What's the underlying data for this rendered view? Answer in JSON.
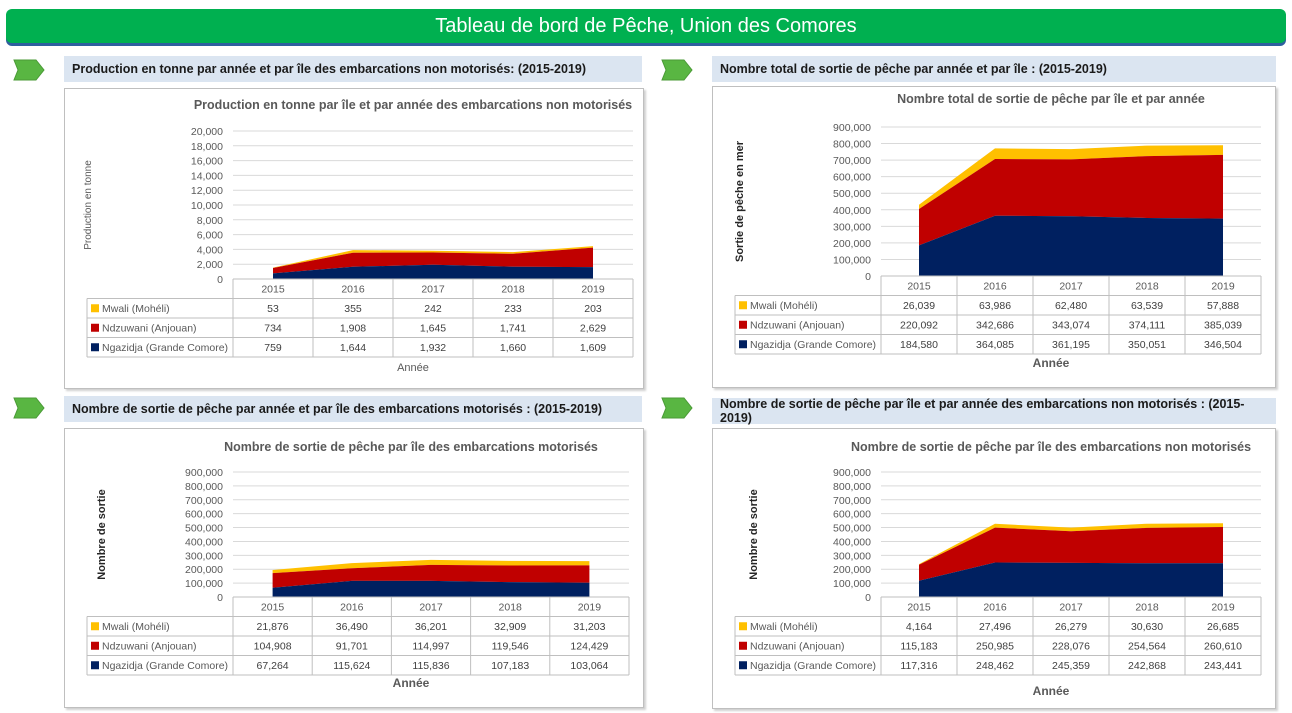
{
  "header": {
    "title": "Tableau de bord de Pêche,  Union des Comores"
  },
  "colors": {
    "mwali": "#ffc000",
    "ndzuwani": "#c00000",
    "ngazidja": "#002060",
    "grid": "#d9d9d9",
    "axis_text": "#595959",
    "header_bg": "#00b050"
  },
  "panels": [
    {
      "heading": "Production en tonne par année et par  île des embarcations non motorisés: (2015-2019)",
      "chart_data": {
        "type": "area",
        "stacked": true,
        "title": "Production en tonne par île et par année des embarcations non motorisés",
        "xlabel": "Année",
        "ylabel": "Production en tonne",
        "ylim": [
          0,
          20000
        ],
        "yticks": [
          "20,000",
          "18,000",
          "16,000",
          "14,000",
          "12,000",
          "10,000",
          "8,000",
          "6,000",
          "4,000",
          "2,000",
          "0"
        ],
        "categories": [
          "2015",
          "2016",
          "2017",
          "2018",
          "2019"
        ],
        "series": [
          {
            "name": "Mwali (Mohéli)",
            "values": [
              53,
              355,
              242,
              233,
              203
            ],
            "labels": [
              "53",
              "355",
              "242",
              "233",
              "203"
            ]
          },
          {
            "name": "Ndzuwani (Anjouan)",
            "values": [
              734,
              1908,
              1645,
              1741,
              2629
            ],
            "labels": [
              "734",
              "1,908",
              "1,645",
              "1,741",
              "2,629"
            ]
          },
          {
            "name": "Ngazidja (Grande Comore)",
            "values": [
              759,
              1644,
              1932,
              1660,
              1609
            ],
            "labels": [
              "759",
              "1,644",
              "1,932",
              "1,660",
              "1,609"
            ]
          }
        ]
      }
    },
    {
      "heading": "Nombre total de sortie de pêche par année et par île : (2015-2019)",
      "chart_data": {
        "type": "area",
        "stacked": true,
        "title": "Nombre total de sortie de pêche par île  et par année",
        "xlabel": "Année",
        "ylabel": "Sortie de pêche en mer",
        "ylim": [
          0,
          900000
        ],
        "yticks": [
          "900,000",
          "800,000",
          "700,000",
          "600,000",
          "500,000",
          "400,000",
          "300,000",
          "200,000",
          "100,000",
          "0"
        ],
        "categories": [
          "2015",
          "2016",
          "2017",
          "2018",
          "2019"
        ],
        "series": [
          {
            "name": "Mwali (Mohéli)",
            "values": [
              26039,
              63986,
              62480,
              63539,
              57888
            ],
            "labels": [
              "26,039",
              "63,986",
              "62,480",
              "63,539",
              "57,888"
            ]
          },
          {
            "name": "Ndzuwani (Anjouan)",
            "values": [
              220092,
              342686,
              343074,
              374111,
              385039
            ],
            "labels": [
              "220,092",
              "342,686",
              "343,074",
              "374,111",
              "385,039"
            ]
          },
          {
            "name": "Ngazidja (Grande Comore)",
            "values": [
              184580,
              364085,
              361195,
              350051,
              346504
            ],
            "labels": [
              "184,580",
              "364,085",
              "361,195",
              "350,051",
              "346,504"
            ]
          }
        ]
      }
    },
    {
      "heading": "Nombre de sortie de pêche par année et par île des embarcations motorisés : (2015-2019)",
      "chart_data": {
        "type": "area",
        "stacked": true,
        "title": "Nombre de sortie de pêche par île des embarcations motorisés",
        "xlabel": "Année",
        "ylabel": "Nombre de sortie",
        "ylim": [
          0,
          900000
        ],
        "yticks": [
          "900,000",
          "800,000",
          "700,000",
          "600,000",
          "500,000",
          "400,000",
          "300,000",
          "200,000",
          "100,000",
          "0"
        ],
        "categories": [
          "2015",
          "2016",
          "2017",
          "2018",
          "2019"
        ],
        "series": [
          {
            "name": "Mwali (Mohéli)",
            "values": [
              21876,
              36490,
              36201,
              32909,
              31203
            ],
            "labels": [
              "21,876",
              "36,490",
              "36,201",
              "32,909",
              "31,203"
            ]
          },
          {
            "name": "Ndzuwani (Anjouan)",
            "values": [
              104908,
              91701,
              114997,
              119546,
              124429
            ],
            "labels": [
              "104,908",
              "91,701",
              "114,997",
              "119,546",
              "124,429"
            ]
          },
          {
            "name": "Ngazidja (Grande Comore)",
            "values": [
              67264,
              115624,
              115836,
              107183,
              103064
            ],
            "labels": [
              "67,264",
              "115,624",
              "115,836",
              "107,183",
              "103,064"
            ]
          }
        ]
      }
    },
    {
      "heading": "Nombre de sortie de pêche par île et par année des embarcations non motorisés : (2015-2019)",
      "chart_data": {
        "type": "area",
        "stacked": true,
        "title": "Nombre de sortie de pêche par île des embarcations non motorisés",
        "xlabel": "Année",
        "ylabel": "Nombre de sortie",
        "ylim": [
          0,
          900000
        ],
        "yticks": [
          "900,000",
          "800,000",
          "700,000",
          "600,000",
          "500,000",
          "400,000",
          "300,000",
          "200,000",
          "100,000",
          "0"
        ],
        "categories": [
          "2015",
          "2016",
          "2017",
          "2018",
          "2019"
        ],
        "series": [
          {
            "name": "Mwali (Mohéli)",
            "values": [
              4164,
              27496,
              26279,
              30630,
              26685
            ],
            "labels": [
              "4,164",
              "27,496",
              "26,279",
              "30,630",
              "26,685"
            ]
          },
          {
            "name": "Ndzuwani (Anjouan)",
            "values": [
              115183,
              250985,
              228076,
              254564,
              260610
            ],
            "labels": [
              "115,183",
              "250,985",
              "228,076",
              "254,564",
              "260,610"
            ]
          },
          {
            "name": "Ngazidja (Grande Comore)",
            "values": [
              117316,
              248462,
              245359,
              242868,
              243441
            ],
            "labels": [
              "117,316",
              "248,462",
              "245,359",
              "242,868",
              "243,441"
            ]
          }
        ]
      }
    }
  ]
}
